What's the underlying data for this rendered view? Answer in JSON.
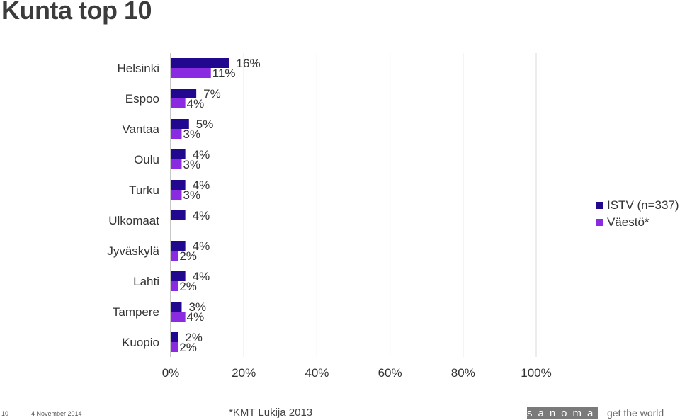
{
  "slide": {
    "title": "Kunta top 10",
    "page_number": "10",
    "date": "4 November 2014",
    "source": "*KMT Lukija 2013",
    "brand": "sanoma",
    "tagline": "get the world"
  },
  "chart_data": {
    "type": "bar",
    "orientation": "horizontal",
    "title": "",
    "xlabel": "",
    "ylabel": "",
    "xlim": [
      0,
      100
    ],
    "x_ticks": [
      "0%",
      "20%",
      "40%",
      "60%",
      "80%",
      "100%"
    ],
    "grid": "vertical",
    "legend_position": "right",
    "categories": [
      "Helsinki",
      "Espoo",
      "Vantaa",
      "Oulu",
      "Turku",
      "Ulkomaat",
      "Jyväskylä",
      "Lahti",
      "Tampere",
      "Kuopio"
    ],
    "series": [
      {
        "name": "ISTV (n=337)",
        "color": "#21088f",
        "values": [
          16,
          7,
          5,
          4,
          4,
          4,
          4,
          4,
          3,
          2
        ],
        "labels": [
          "16%",
          "7%",
          "5%",
          "4%",
          "4%",
          "4%",
          "4%",
          "4%",
          "3%",
          "2%"
        ]
      },
      {
        "name": "Väestö*",
        "color": "#8a2be2",
        "values": [
          11,
          4,
          3,
          3,
          3,
          null,
          2,
          2,
          4,
          2
        ],
        "labels": [
          "11%",
          "4%",
          "3%",
          "3%",
          "3%",
          "",
          "2%",
          "2%",
          "4%",
          "2%"
        ]
      }
    ]
  }
}
